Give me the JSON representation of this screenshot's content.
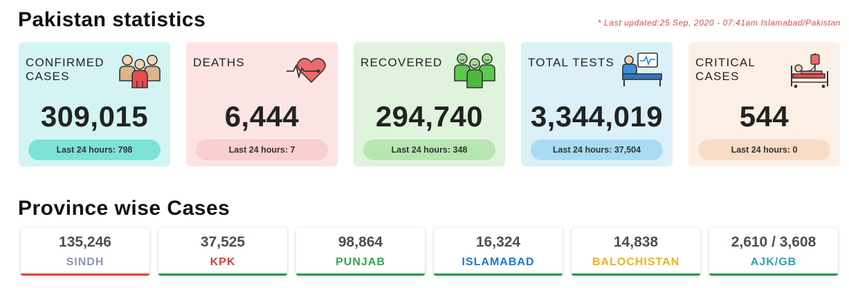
{
  "header": {
    "title": "Pakistan statistics",
    "updated": "* Last updated:25 Sep, 2020 - 07:41am Islamabad/Pakistan"
  },
  "cards": [
    {
      "label": "CONFIRMED CASES",
      "value": "309,015",
      "last24": "Last 24 hours: 798",
      "icon": "people-group-icon",
      "bg": "#d4f4f4",
      "pill": "#7de3d9"
    },
    {
      "label": "DEATHS",
      "value": "6,444",
      "last24": "Last 24 hours: 7",
      "icon": "heartbeat-icon",
      "bg": "#fde4e4",
      "pill": "#f9cfcf"
    },
    {
      "label": "RECOVERED",
      "value": "294,740",
      "last24": "Last 24 hours: 348",
      "icon": "recovered-people-icon",
      "bg": "#e0f4dd",
      "pill": "#b8e6b2"
    },
    {
      "label": "TOTAL TESTS",
      "value": "3,344,019",
      "last24": "Last 24 hours: 37,504",
      "icon": "patient-bed-monitor-icon",
      "bg": "#dcf0f9",
      "pill": "#a9dcf3"
    },
    {
      "label": "CRITICAL CASES",
      "value": "544",
      "last24": "Last 24 hours: 0",
      "icon": "hospital-bed-drip-icon",
      "bg": "#fcf0e6",
      "pill": "#f8dcc4"
    }
  ],
  "province_section": {
    "title": "Province wise Cases",
    "items": [
      {
        "name": "SINDH",
        "value": "135,246",
        "color": "#8a94b8",
        "bar": "#e33d3d"
      },
      {
        "name": "KPK",
        "value": "37,525",
        "color": "#e03c3c",
        "bar": "#1e9b4a"
      },
      {
        "name": "PUNJAB",
        "value": "98,864",
        "color": "#2fa84f",
        "bar": "#1e9b4a"
      },
      {
        "name": "ISLAMABAD",
        "value": "16,324",
        "color": "#1a78d8",
        "bar": "#1e9b4a"
      },
      {
        "name": "BALOCHISTAN",
        "value": "14,838",
        "color": "#f2b11c",
        "bar": "#1e9b4a"
      },
      {
        "name": "AJK/GB",
        "value": "2,610 / 3,608",
        "color": "#29a3b8",
        "bar": "#1e9b4a"
      }
    ]
  }
}
